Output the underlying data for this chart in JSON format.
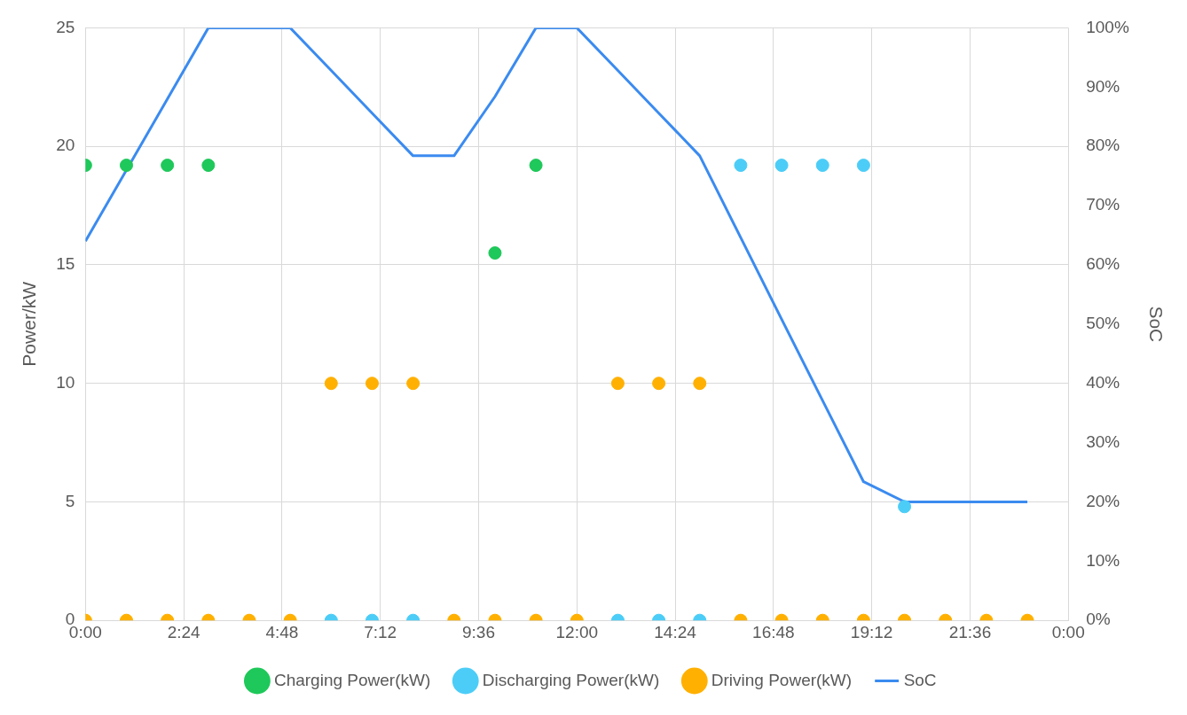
{
  "chart_data": {
    "type": "scatter",
    "xlabel": null,
    "ylabel": "Power/kW",
    "y2label": "SoC",
    "x": [
      0,
      1,
      2,
      3,
      4,
      5,
      6,
      7,
      8,
      9,
      10,
      11,
      12,
      13,
      14,
      15,
      16,
      17,
      18,
      19,
      20,
      21,
      22,
      23
    ],
    "xlim": [
      0,
      24
    ],
    "xticks": [
      {
        "value": 0,
        "label": "0:00"
      },
      {
        "value": 2.4,
        "label": "2:24"
      },
      {
        "value": 4.8,
        "label": "4:48"
      },
      {
        "value": 7.2,
        "label": "7:12"
      },
      {
        "value": 9.6,
        "label": "9:36"
      },
      {
        "value": 12,
        "label": "12:00"
      },
      {
        "value": 14.4,
        "label": "14:24"
      },
      {
        "value": 16.8,
        "label": "16:48"
      },
      {
        "value": 19.2,
        "label": "19:12"
      },
      {
        "value": 21.6,
        "label": "21:36"
      },
      {
        "value": 24,
        "label": "0:00"
      }
    ],
    "ylim": [
      0,
      25
    ],
    "yticks": [
      0,
      5,
      10,
      15,
      20,
      25
    ],
    "y2lim": [
      0,
      100
    ],
    "y2ticks": [
      {
        "value": 0,
        "label": "0%"
      },
      {
        "value": 10,
        "label": "10%"
      },
      {
        "value": 20,
        "label": "20%"
      },
      {
        "value": 30,
        "label": "30%"
      },
      {
        "value": 40,
        "label": "40%"
      },
      {
        "value": 50,
        "label": "50%"
      },
      {
        "value": 60,
        "label": "60%"
      },
      {
        "value": 70,
        "label": "70%"
      },
      {
        "value": 80,
        "label": "80%"
      },
      {
        "value": 90,
        "label": "90%"
      },
      {
        "value": 100,
        "label": "100%"
      }
    ],
    "grid": true,
    "legend": "bottom",
    "marker": "circle",
    "series": [
      {
        "name": "Charging Power(kW)",
        "color": "#1ec85a",
        "values": [
          19.2,
          19.2,
          19.2,
          19.2,
          null,
          null,
          null,
          null,
          null,
          null,
          15.5,
          19.2,
          null,
          null,
          null,
          null,
          null,
          null,
          null,
          null,
          null,
          null,
          null,
          null
        ]
      },
      {
        "name": "Discharging Power(kW)",
        "color": "#4ccdf7",
        "values": [
          null,
          null,
          null,
          null,
          null,
          null,
          0,
          0,
          0,
          null,
          null,
          null,
          null,
          0,
          0,
          0,
          19.2,
          19.2,
          19.2,
          19.2,
          4.8,
          null,
          null,
          null
        ]
      },
      {
        "name": "Driving Power(kW)",
        "color": "#ffb000",
        "values": [
          0,
          0,
          0,
          0,
          0,
          0,
          10,
          10,
          10,
          0,
          0,
          0,
          0,
          10,
          10,
          10,
          0,
          0,
          0,
          0,
          0,
          0,
          0,
          0
        ]
      },
      {
        "name": "SoC",
        "type": "line",
        "axis": "y2",
        "marker": "none",
        "color": "#3b8bf0",
        "values": [
          64,
          76,
          88,
          100,
          100,
          100,
          92.8,
          85.6,
          78.4,
          78.4,
          88.4,
          100,
          100,
          92.8,
          85.6,
          78.4,
          64.6,
          50.8,
          37.1,
          23.4,
          20,
          20,
          20,
          20
        ]
      }
    ]
  }
}
